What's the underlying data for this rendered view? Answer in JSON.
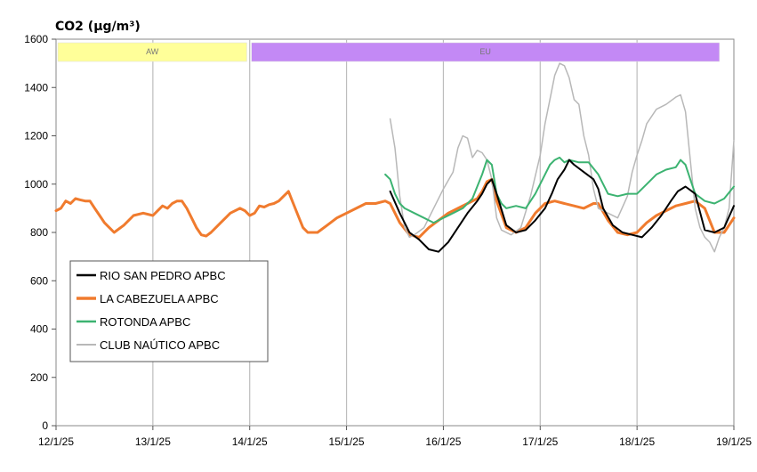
{
  "chart_data": {
    "type": "line",
    "title": "CO2 (µg/m³)",
    "ylim": [
      0,
      1600
    ],
    "yticks": [
      "0",
      "200",
      "400",
      "600",
      "800",
      "1000",
      "1200",
      "1400",
      "1600"
    ],
    "xlim": [
      "12/1/25",
      "19/1/25"
    ],
    "xticks": [
      "12/1/25",
      "13/1/25",
      "14/1/25",
      "15/1/25",
      "16/1/25",
      "17/1/25",
      "18/1/25",
      "19/1/25"
    ],
    "grid": "vertical",
    "legend_position": "bottom-left",
    "bands": [
      {
        "label": "AW",
        "start": 0.0,
        "end": 1.97,
        "color": "#ffff99"
      },
      {
        "label": "EU",
        "start": 2.0,
        "end": 6.85,
        "color": "#c389f5"
      }
    ],
    "series": [
      {
        "name": "RIO SAN PEDRO APBC",
        "color": "#000000",
        "x": [
          3.45,
          3.55,
          3.65,
          3.75,
          3.85,
          3.95,
          4.05,
          4.15,
          4.25,
          4.35,
          4.4,
          4.45,
          4.5,
          4.55,
          4.65,
          4.75,
          4.85,
          4.95,
          5.05,
          5.12,
          5.18,
          5.25,
          5.3,
          5.35,
          5.45,
          5.55,
          5.6,
          5.65,
          5.75,
          5.85,
          5.95,
          6.05,
          6.15,
          6.25,
          6.35,
          6.42,
          6.5,
          6.6,
          6.7,
          6.8,
          6.9,
          7.0
        ],
        "y": [
          970,
          880,
          800,
          770,
          730,
          720,
          760,
          820,
          880,
          930,
          960,
          1000,
          1020,
          960,
          830,
          800,
          810,
          850,
          900,
          960,
          1020,
          1060,
          1100,
          1080,
          1050,
          1020,
          980,
          900,
          830,
          800,
          790,
          780,
          820,
          870,
          930,
          970,
          990,
          960,
          810,
          800,
          820,
          910
        ]
      },
      {
        "name": "LA CABEZUELA  APBC",
        "color": "#f07b2e",
        "x": [
          0.0,
          0.05,
          0.1,
          0.15,
          0.2,
          0.25,
          0.3,
          0.35,
          0.4,
          0.45,
          0.5,
          0.55,
          0.6,
          0.7,
          0.8,
          0.9,
          1.0,
          1.05,
          1.1,
          1.15,
          1.2,
          1.25,
          1.3,
          1.35,
          1.4,
          1.45,
          1.5,
          1.55,
          1.6,
          1.7,
          1.8,
          1.9,
          1.95,
          2.0,
          2.05,
          2.1,
          2.15,
          2.2,
          2.25,
          2.3,
          2.35,
          2.4,
          2.45,
          2.5,
          2.55,
          2.6,
          2.7,
          2.8,
          2.9,
          3.0,
          3.1,
          3.2,
          3.3,
          3.4,
          3.45,
          3.55,
          3.65,
          3.75,
          3.85,
          3.95,
          4.05,
          4.15,
          4.25,
          4.35,
          4.4,
          4.45,
          4.5,
          4.55,
          4.65,
          4.75,
          4.85,
          4.95,
          5.05,
          5.15,
          5.25,
          5.35,
          5.45,
          5.55,
          5.6,
          5.7,
          5.8,
          5.9,
          6.0,
          6.1,
          6.2,
          6.3,
          6.4,
          6.5,
          6.6,
          6.7,
          6.8,
          6.9,
          7.0
        ],
        "y": [
          890,
          900,
          930,
          920,
          940,
          935,
          930,
          930,
          900,
          870,
          840,
          820,
          800,
          830,
          870,
          880,
          870,
          890,
          910,
          900,
          920,
          930,
          930,
          900,
          860,
          820,
          790,
          785,
          800,
          840,
          880,
          900,
          890,
          870,
          880,
          910,
          905,
          915,
          920,
          930,
          950,
          970,
          920,
          870,
          820,
          800,
          800,
          830,
          860,
          880,
          900,
          920,
          920,
          930,
          920,
          840,
          790,
          780,
          820,
          850,
          880,
          900,
          920,
          940,
          970,
          1010,
          1020,
          930,
          820,
          800,
          820,
          880,
          920,
          930,
          920,
          910,
          900,
          920,
          920,
          850,
          800,
          790,
          800,
          840,
          870,
          890,
          910,
          920,
          930,
          900,
          800,
          800,
          860
        ]
      },
      {
        "name": "ROTONDA  APBC",
        "color": "#3cb371",
        "x": [
          3.4,
          3.45,
          3.5,
          3.55,
          3.6,
          3.7,
          3.8,
          3.9,
          4.0,
          4.1,
          4.2,
          4.3,
          4.35,
          4.4,
          4.45,
          4.5,
          4.55,
          4.6,
          4.65,
          4.75,
          4.85,
          4.95,
          5.05,
          5.1,
          5.15,
          5.2,
          5.25,
          5.3,
          5.4,
          5.5,
          5.6,
          5.7,
          5.8,
          5.9,
          6.0,
          6.1,
          6.2,
          6.3,
          6.4,
          6.45,
          6.5,
          6.55,
          6.6,
          6.7,
          6.8,
          6.9,
          7.0
        ],
        "y": [
          1040,
          1020,
          960,
          920,
          900,
          880,
          860,
          840,
          860,
          880,
          900,
          940,
          990,
          1040,
          1100,
          1080,
          960,
          920,
          900,
          910,
          900,
          960,
          1040,
          1080,
          1100,
          1110,
          1090,
          1100,
          1090,
          1090,
          1040,
          960,
          950,
          960,
          960,
          1000,
          1040,
          1060,
          1070,
          1100,
          1080,
          1020,
          960,
          930,
          920,
          940,
          990
        ]
      },
      {
        "name": "CLUB NAÚTICO  APBC",
        "color": "#b8b8b8",
        "x": [
          3.45,
          3.5,
          3.55,
          3.6,
          3.65,
          3.7,
          3.8,
          3.9,
          4.0,
          4.1,
          4.15,
          4.2,
          4.25,
          4.3,
          4.35,
          4.4,
          4.45,
          4.5,
          4.55,
          4.6,
          4.7,
          4.8,
          4.9,
          5.0,
          5.05,
          5.1,
          5.15,
          5.2,
          5.25,
          5.3,
          5.35,
          5.4,
          5.45,
          5.5,
          5.55,
          5.6,
          5.7,
          5.8,
          5.9,
          5.95,
          6.0,
          6.05,
          6.1,
          6.2,
          6.3,
          6.4,
          6.45,
          6.5,
          6.55,
          6.6,
          6.65,
          6.7,
          6.75,
          6.8,
          6.85,
          6.9,
          6.95,
          7.0
        ],
        "y": [
          1270,
          1150,
          950,
          820,
          780,
          790,
          820,
          900,
          980,
          1050,
          1150,
          1200,
          1190,
          1110,
          1140,
          1130,
          1100,
          1020,
          860,
          810,
          790,
          820,
          950,
          1120,
          1250,
          1350,
          1450,
          1500,
          1490,
          1440,
          1350,
          1330,
          1200,
          1120,
          980,
          900,
          880,
          860,
          950,
          1050,
          1120,
          1180,
          1250,
          1310,
          1330,
          1360,
          1370,
          1300,
          1100,
          900,
          820,
          780,
          760,
          720,
          780,
          820,
          900,
          1180
        ]
      }
    ]
  }
}
